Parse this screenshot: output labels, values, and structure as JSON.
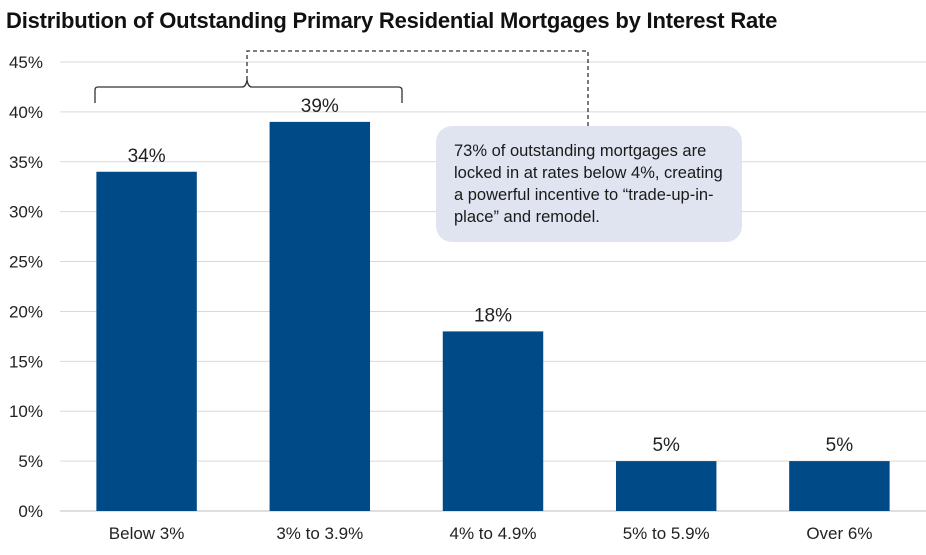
{
  "chart_data": {
    "type": "bar",
    "title": "Distribution of Outstanding Primary Residential Mortgages by Interest Rate",
    "categories": [
      "Below 3%",
      "3% to 3.9%",
      "4% to 4.9%",
      "5% to 5.9%",
      "Over 6%"
    ],
    "values": [
      34,
      39,
      18,
      5,
      5
    ],
    "value_labels": [
      "34%",
      "39%",
      "18%",
      "5%",
      "5%"
    ],
    "y_ticks": [
      0,
      5,
      10,
      15,
      20,
      25,
      30,
      35,
      40,
      45
    ],
    "y_tick_labels": [
      "0%",
      "5%",
      "10%",
      "15%",
      "20%",
      "25%",
      "30%",
      "35%",
      "40%",
      "45%"
    ],
    "ylim": [
      0,
      45
    ],
    "grid": true,
    "bar_color": "#004b87",
    "annotation": {
      "text": "73% of outstanding mortgages are locked in at rates below 4%, creating a powerful incentive to “trade-up-in-place” and remodel.",
      "brackets_categories": [
        "Below 3%",
        "3% to 3.9%"
      ]
    }
  },
  "colors": {
    "bar": "#004b87",
    "grid": "#d9d9d9",
    "callout_bg": "#dfe4f0",
    "text": "#222222"
  }
}
